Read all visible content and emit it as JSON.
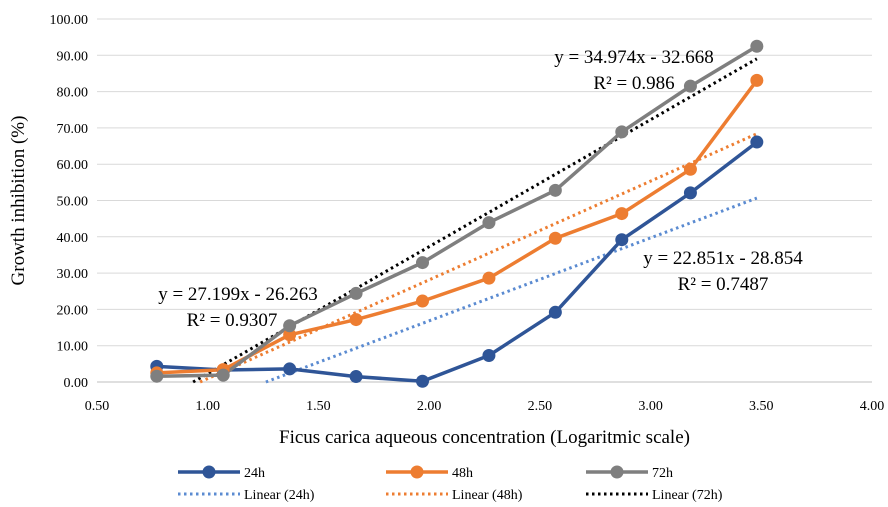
{
  "chart_data": {
    "type": "line",
    "xlabel": "Ficus carica aqueous concentration (Logaritmic scale)",
    "ylabel": "Growth inhibition (%)",
    "xlim": [
      0.5,
      4.0
    ],
    "ylim": [
      0,
      100
    ],
    "x_ticks": [
      "0.50",
      "1.00",
      "1.50",
      "2.00",
      "2.50",
      "3.00",
      "3.50",
      "4.00"
    ],
    "y_ticks": [
      "0.00",
      "10.00",
      "20.00",
      "30.00",
      "40.00",
      "50.00",
      "60.00",
      "70.00",
      "80.00",
      "90.00",
      "100.00"
    ],
    "grid": "horizontal",
    "legend_position": "bottom",
    "series": [
      {
        "name": "24h",
        "color": "#2f5597",
        "x": [
          0.77,
          1.07,
          1.37,
          1.67,
          1.97,
          2.27,
          2.57,
          2.87,
          3.18,
          3.48
        ],
        "values": [
          4.3,
          3.3,
          3.6,
          1.5,
          0.2,
          7.3,
          19.2,
          39.2,
          52.1,
          66.1
        ]
      },
      {
        "name": "48h",
        "color": "#ed7d31",
        "x": [
          0.77,
          1.07,
          1.37,
          1.67,
          1.97,
          2.27,
          2.57,
          2.87,
          3.18,
          3.48
        ],
        "values": [
          2.5,
          3.4,
          13.0,
          17.2,
          22.3,
          28.6,
          39.6,
          46.4,
          58.6,
          83.1
        ]
      },
      {
        "name": "72h",
        "color": "#7f7f7f",
        "x": [
          0.77,
          1.07,
          1.37,
          1.67,
          1.97,
          2.27,
          2.57,
          2.87,
          3.18,
          3.48
        ],
        "values": [
          1.6,
          1.9,
          15.5,
          24.4,
          32.9,
          43.9,
          52.8,
          68.9,
          81.5,
          92.5
        ]
      }
    ],
    "trendlines": [
      {
        "name": "Linear (24h)",
        "color": "#5b8bd1",
        "slope": 22.851,
        "intercept": -28.854,
        "equation": "y = 22.851x - 28.854",
        "r2": "R² = 0.7487"
      },
      {
        "name": "Linear (48h)",
        "color": "#ed7d31",
        "slope": 27.199,
        "intercept": -26.263,
        "equation": "y = 27.199x - 26.263",
        "r2": "R² = 0.9307"
      },
      {
        "name": "Linear (72h)",
        "color": "#000000",
        "slope": 34.974,
        "intercept": -32.668,
        "equation": "y = 34.974x - 32.668",
        "r2": "R² = 0.986"
      }
    ]
  }
}
